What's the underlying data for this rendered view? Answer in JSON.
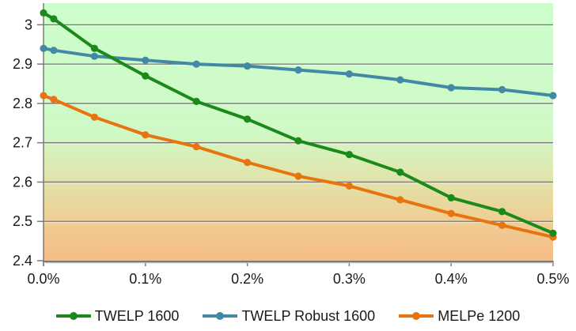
{
  "chart_data": {
    "type": "line",
    "title": "",
    "xlabel": "",
    "ylabel": "",
    "grid": true,
    "legend_position": "bottom",
    "x_axis": {
      "tick_values": [
        0.0,
        0.1,
        0.2,
        0.3,
        0.4,
        0.5
      ],
      "tick_labels": [
        "0.0%",
        "0.1%",
        "0.2%",
        "0.3%",
        "0.4%",
        "0.5%"
      ],
      "xlim": [
        0.0,
        0.5
      ]
    },
    "y_axis": {
      "tick_values": [
        2.4,
        2.5,
        2.6,
        2.7,
        2.8,
        2.9,
        3.0
      ],
      "tick_labels": [
        "2.4",
        "2.5",
        "2.6",
        "2.7",
        "2.8",
        "2.9",
        "3"
      ],
      "ylim": [
        2.4,
        3.055
      ]
    },
    "x": [
      0.0,
      0.01,
      0.05,
      0.1,
      0.15,
      0.2,
      0.25,
      0.3,
      0.35,
      0.4,
      0.45,
      0.5
    ],
    "series": [
      {
        "name": "TWELP Robust 1600",
        "color": "#4289A6",
        "values": [
          2.94,
          2.935,
          2.92,
          2.91,
          2.9,
          2.895,
          2.885,
          2.875,
          2.86,
          2.84,
          2.835,
          2.82
        ]
      },
      {
        "name": "MELPe 1200",
        "color": "#E8740F",
        "values": [
          2.82,
          2.81,
          2.765,
          2.72,
          2.69,
          2.65,
          2.615,
          2.59,
          2.555,
          2.52,
          2.49,
          2.46
        ]
      },
      {
        "name": "TWELP 1600",
        "color": "#1B8A1B",
        "values": [
          3.03,
          3.015,
          2.94,
          2.87,
          2.805,
          2.76,
          2.705,
          2.67,
          2.625,
          2.56,
          2.525,
          2.47
        ]
      }
    ],
    "legend_order": [
      "TWELP 1600",
      "TWELP Robust 1600",
      "MELPe 1200"
    ],
    "plot_bg_gradient": [
      {
        "offset": "0%",
        "color": "#CCFECC"
      },
      {
        "offset": "50%",
        "color": "#CFF9C6"
      },
      {
        "offset": "66%",
        "color": "#DFE7AE"
      },
      {
        "offset": "83%",
        "color": "#EDD096"
      },
      {
        "offset": "100%",
        "color": "#F5BC85"
      }
    ],
    "colors": {
      "gridline": "#787878",
      "axis": "#7A7A7A",
      "axis_shadow": "#BFBFBF",
      "tick_text": "#1a1a1a"
    }
  }
}
